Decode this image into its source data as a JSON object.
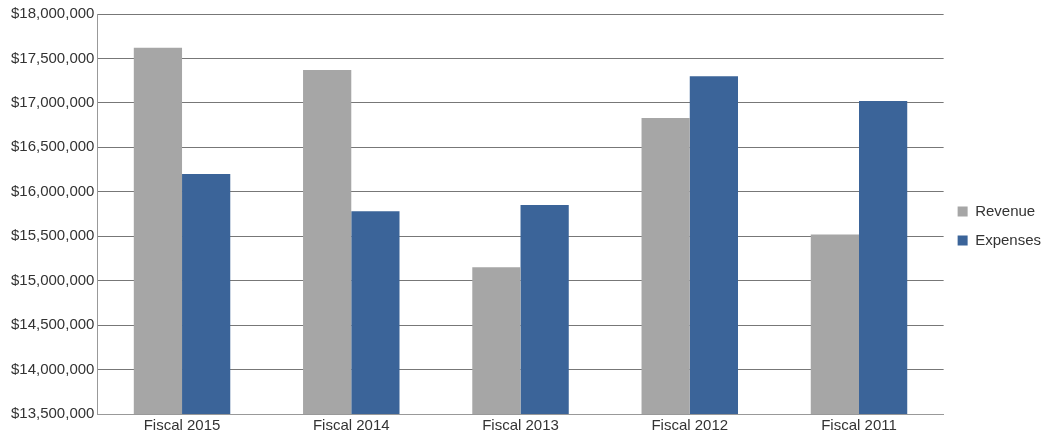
{
  "chart_data": {
    "type": "bar",
    "categories": [
      "Fiscal 2015",
      "Fiscal 2014",
      "Fiscal 2013",
      "Fiscal 2012",
      "Fiscal 2011"
    ],
    "series": [
      {
        "name": "Revenue",
        "color": "#a6a6a6",
        "values": [
          17620000,
          17370000,
          15150000,
          16830000,
          15520000
        ]
      },
      {
        "name": "Expenses",
        "color": "#3b6499",
        "values": [
          16200000,
          15780000,
          15850000,
          17300000,
          17020000
        ]
      }
    ],
    "ylim": [
      13500000,
      18000000
    ],
    "yticks": [
      {
        "value": 13500000,
        "label": "$13,500,000"
      },
      {
        "value": 14000000,
        "label": "$14,000,000"
      },
      {
        "value": 14500000,
        "label": "$14,500,000"
      },
      {
        "value": 15000000,
        "label": "$15,000,000"
      },
      {
        "value": 15500000,
        "label": "$15,500,000"
      },
      {
        "value": 16000000,
        "label": "$16,000,000"
      },
      {
        "value": 16500000,
        "label": "$16,500,000"
      },
      {
        "value": 17000000,
        "label": "$17,000,000"
      },
      {
        "value": 17500000,
        "label": "$17,500,000"
      },
      {
        "value": 18000000,
        "label": "$18,000,000"
      }
    ],
    "grid": "y",
    "legend": "right"
  }
}
